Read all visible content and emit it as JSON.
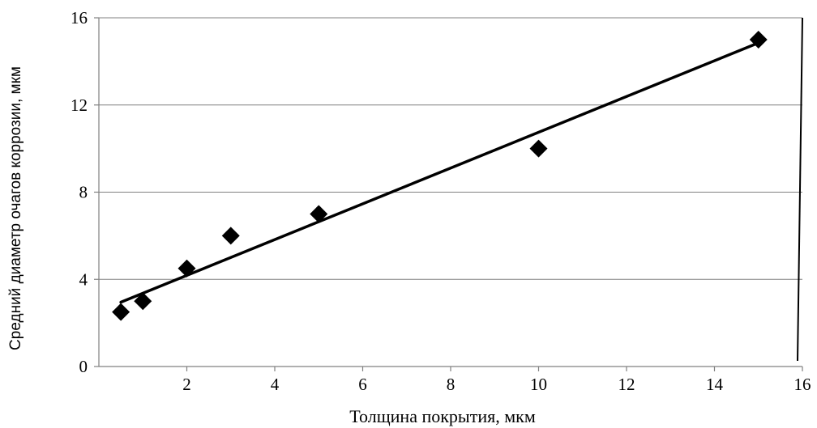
{
  "chart_data": {
    "type": "scatter",
    "title": "",
    "xlabel": "Толщина покрытия, мкм",
    "ylabel": "Средний диаметр очагов коррозии, мкм",
    "xlim": [
      0,
      16
    ],
    "ylim": [
      0,
      16
    ],
    "x_ticks": [
      2,
      4,
      6,
      8,
      10,
      12,
      14,
      16
    ],
    "y_ticks": [
      0,
      4,
      8,
      12,
      16
    ],
    "x_tick_labels": [
      "2",
      "4",
      "6",
      "8",
      "10",
      "12",
      "14",
      "16"
    ],
    "y_tick_labels": [
      "0",
      "4",
      "8",
      "12",
      "16"
    ],
    "grid": "horizontal",
    "legend": "none",
    "marker": "diamond",
    "marker_color": "#000000",
    "series": [
      {
        "x": [
          0.5,
          1,
          2,
          3,
          5,
          10,
          15
        ],
        "y": [
          2.5,
          3,
          4.5,
          6,
          7,
          10,
          15
        ]
      }
    ],
    "trendline": {
      "type": "linear",
      "x_range": [
        0.5,
        15
      ],
      "y_range": [
        2.95,
        14.85
      ]
    }
  }
}
